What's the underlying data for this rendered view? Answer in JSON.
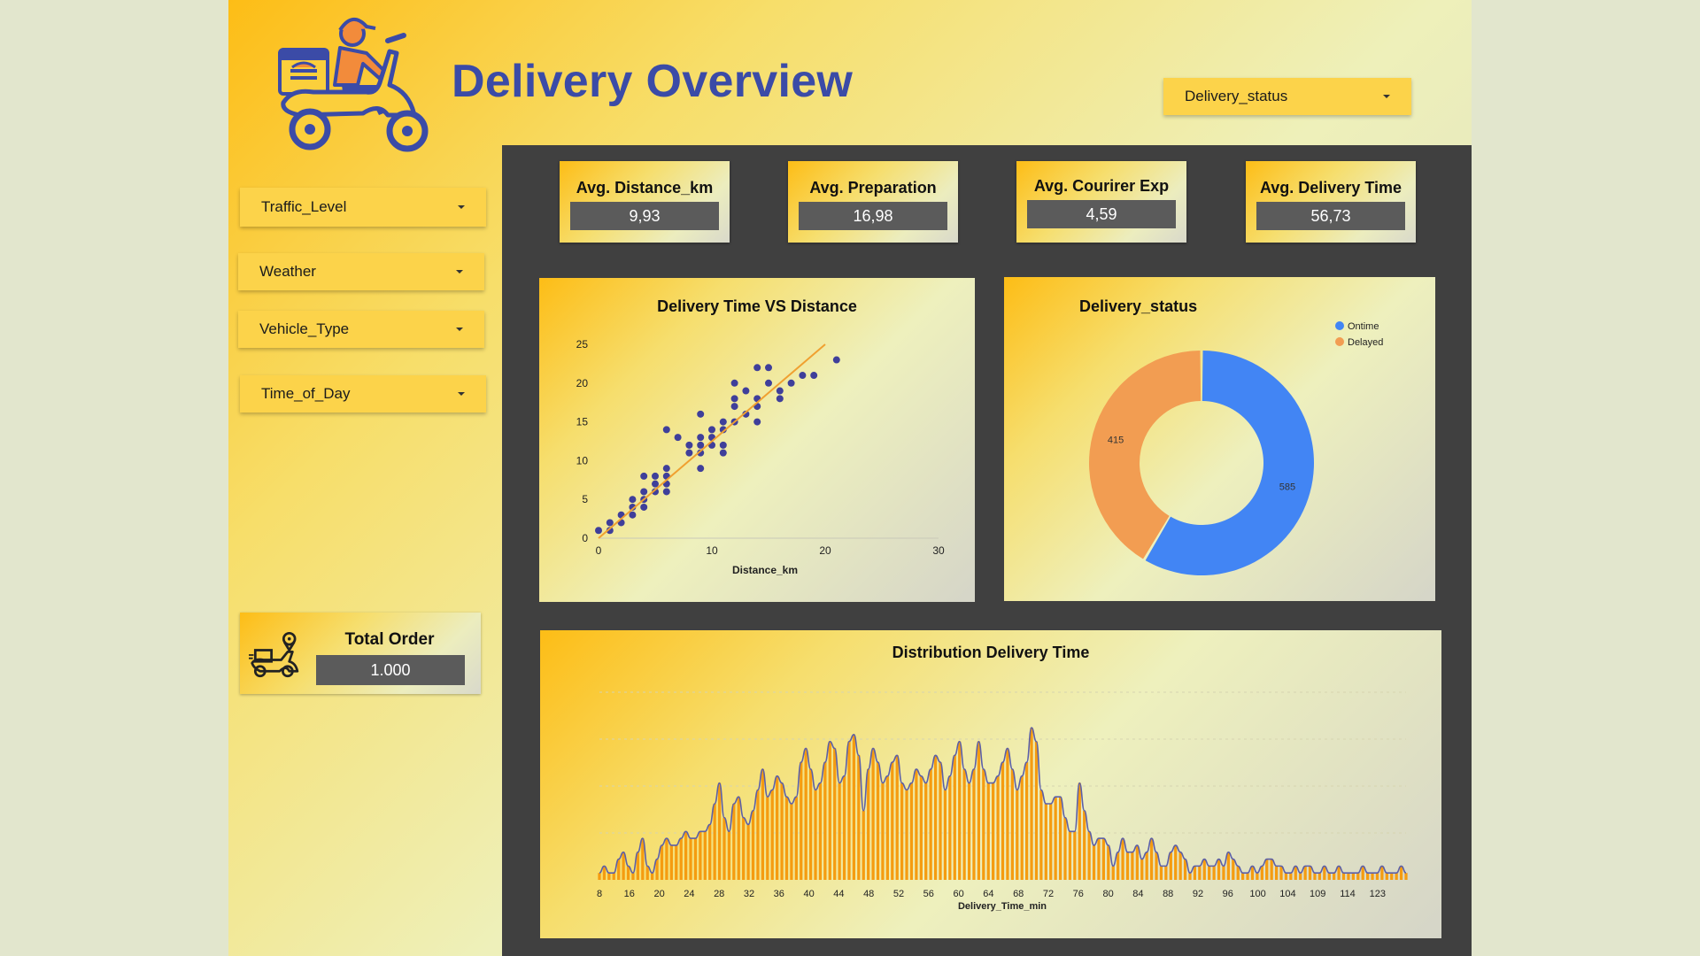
{
  "header": {
    "title": "Delivery Overview",
    "status_filter": "Delivery_status"
  },
  "filters": [
    {
      "label": "Traffic_Level"
    },
    {
      "label": "Weather"
    },
    {
      "label": "Vehicle_Type"
    },
    {
      "label": "Time_of_Day"
    }
  ],
  "kpis": [
    {
      "title": "Avg. Distance_km",
      "value": "9,93"
    },
    {
      "title": "Avg. Preparation",
      "value": "16,98"
    },
    {
      "title": "Avg. Courirer Exp",
      "value": "4,59"
    },
    {
      "title": "Avg. Delivery Time",
      "value": "56,73"
    }
  ],
  "total_order": {
    "title": "Total Order",
    "value": "1.000"
  },
  "colors": {
    "accent_yellow": "#fcd34a",
    "title_blue": "#3b4ba7",
    "dark_panel": "#404040",
    "ontime": "#4285f4",
    "delayed": "#f29d52",
    "scatter_point": "#3f3f9a",
    "trend_line": "#f0a030",
    "histogram_fill": "#f59c10",
    "histogram_line": "#5b5fa8"
  },
  "icons": {
    "logo": "delivery-scooter-rider-icon",
    "total_order": "scooter-location-icon",
    "dropdown": "caret-down-icon"
  },
  "chart_data": [
    {
      "type": "scatter",
      "title": "Delivery Time VS Distance",
      "xlabel": "Distance_km",
      "ylabel": "",
      "xlim": [
        0,
        30
      ],
      "ylim": [
        0,
        25
      ],
      "x_ticks": [
        "0",
        "10",
        "20",
        "30"
      ],
      "y_ticks": [
        "0",
        "5",
        "10",
        "15",
        "20",
        "25"
      ],
      "trendline": {
        "x": [
          0,
          20
        ],
        "y": [
          0,
          25
        ]
      },
      "points": [
        [
          0,
          1
        ],
        [
          1,
          1
        ],
        [
          1,
          2
        ],
        [
          2,
          2
        ],
        [
          2,
          3
        ],
        [
          3,
          3
        ],
        [
          3,
          4
        ],
        [
          3,
          5
        ],
        [
          4,
          4
        ],
        [
          4,
          5
        ],
        [
          4,
          6
        ],
        [
          4,
          8
        ],
        [
          5,
          6
        ],
        [
          5,
          7
        ],
        [
          5,
          8
        ],
        [
          6,
          6
        ],
        [
          6,
          7
        ],
        [
          6,
          8
        ],
        [
          6,
          9
        ],
        [
          6,
          14
        ],
        [
          7,
          13
        ],
        [
          8,
          11
        ],
        [
          8,
          12
        ],
        [
          9,
          9
        ],
        [
          9,
          11
        ],
        [
          9,
          12
        ],
        [
          9,
          13
        ],
        [
          9,
          16
        ],
        [
          10,
          12
        ],
        [
          10,
          13
        ],
        [
          10,
          14
        ],
        [
          11,
          11
        ],
        [
          11,
          12
        ],
        [
          11,
          14
        ],
        [
          11,
          15
        ],
        [
          12,
          15
        ],
        [
          12,
          17
        ],
        [
          12,
          18
        ],
        [
          12,
          20
        ],
        [
          13,
          16
        ],
        [
          13,
          19
        ],
        [
          14,
          15
        ],
        [
          14,
          17
        ],
        [
          14,
          18
        ],
        [
          14,
          22
        ],
        [
          15,
          20
        ],
        [
          15,
          22
        ],
        [
          16,
          18
        ],
        [
          16,
          19
        ],
        [
          17,
          20
        ],
        [
          18,
          21
        ],
        [
          19,
          21
        ],
        [
          21,
          23
        ]
      ]
    },
    {
      "type": "pie",
      "title": "Delivery_status",
      "legend_position": "top-right",
      "series": [
        {
          "name": "Ontime",
          "value": 585
        },
        {
          "name": "Delayed",
          "value": 415
        }
      ]
    },
    {
      "type": "area",
      "title": "Distribution Delivery Time",
      "xlabel": "Delivery_Time_min",
      "x_ticks": [
        "8",
        "16",
        "20",
        "24",
        "28",
        "32",
        "36",
        "40",
        "44",
        "48",
        "52",
        "56",
        "60",
        "64",
        "68",
        "72",
        "76",
        "80",
        "84",
        "88",
        "92",
        "96",
        "100",
        "104",
        "109",
        "114",
        "123"
      ],
      "values": [
        1,
        2,
        1,
        1,
        3,
        4,
        2,
        1,
        4,
        6,
        2,
        1,
        3,
        5,
        6,
        5,
        5,
        6,
        7,
        6,
        6,
        7,
        7,
        8,
        11,
        14,
        9,
        7,
        11,
        12,
        9,
        8,
        10,
        13,
        16,
        12,
        13,
        15,
        14,
        12,
        11,
        12,
        17,
        19,
        16,
        13,
        14,
        17,
        20,
        19,
        14,
        15,
        20,
        21,
        18,
        10,
        16,
        19,
        17,
        14,
        15,
        17,
        18,
        14,
        13,
        14,
        16,
        15,
        14,
        16,
        18,
        17,
        13,
        15,
        18,
        20,
        16,
        14,
        16,
        20,
        16,
        14,
        14,
        15,
        17,
        19,
        16,
        13,
        15,
        17,
        22,
        20,
        13,
        11,
        11,
        12,
        12,
        9,
        7,
        7,
        14,
        10,
        7,
        5,
        6,
        6,
        5,
        2,
        4,
        6,
        4,
        4,
        5,
        3,
        4,
        6,
        4,
        2,
        2,
        4,
        5,
        4,
        3,
        1,
        2,
        2,
        3,
        2,
        2,
        3,
        2,
        4,
        3,
        2,
        1,
        1,
        2,
        1,
        2,
        3,
        3,
        2,
        2,
        1,
        1,
        2,
        1,
        2,
        2,
        1,
        1,
        2,
        1,
        1,
        2,
        1,
        1,
        1,
        1,
        2,
        1,
        1,
        1,
        2,
        1,
        1,
        1,
        2,
        1
      ]
    }
  ]
}
